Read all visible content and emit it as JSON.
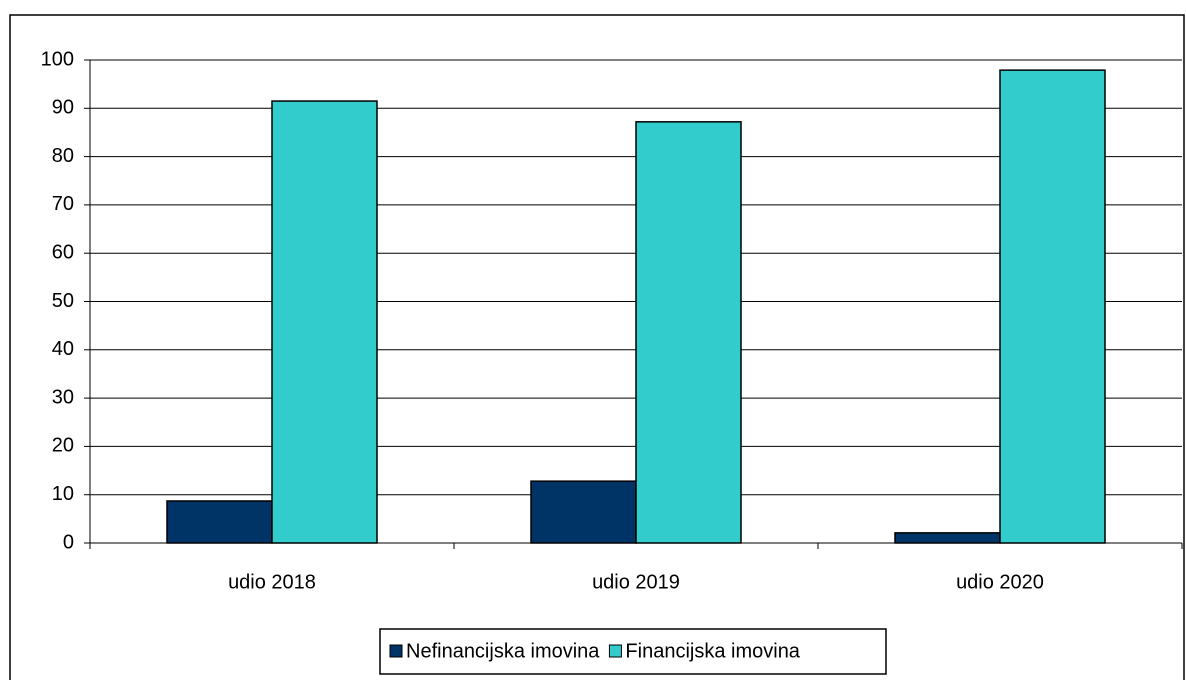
{
  "chart_data": {
    "type": "bar",
    "categories": [
      "udio 2018",
      "udio 2019",
      "udio 2020"
    ],
    "series": [
      {
        "name": "Nefinancijska imovina",
        "color": "#003366",
        "values": [
          8.7,
          12.8,
          2.1
        ]
      },
      {
        "name": "Financijska imovina",
        "color": "#33cccc",
        "values": [
          91.5,
          87.2,
          97.9
        ]
      }
    ],
    "ylim": [
      0,
      100
    ],
    "yticks": [
      0,
      10,
      20,
      30,
      40,
      50,
      60,
      70,
      80,
      90,
      100
    ],
    "grid": true,
    "legend": "bottom"
  }
}
